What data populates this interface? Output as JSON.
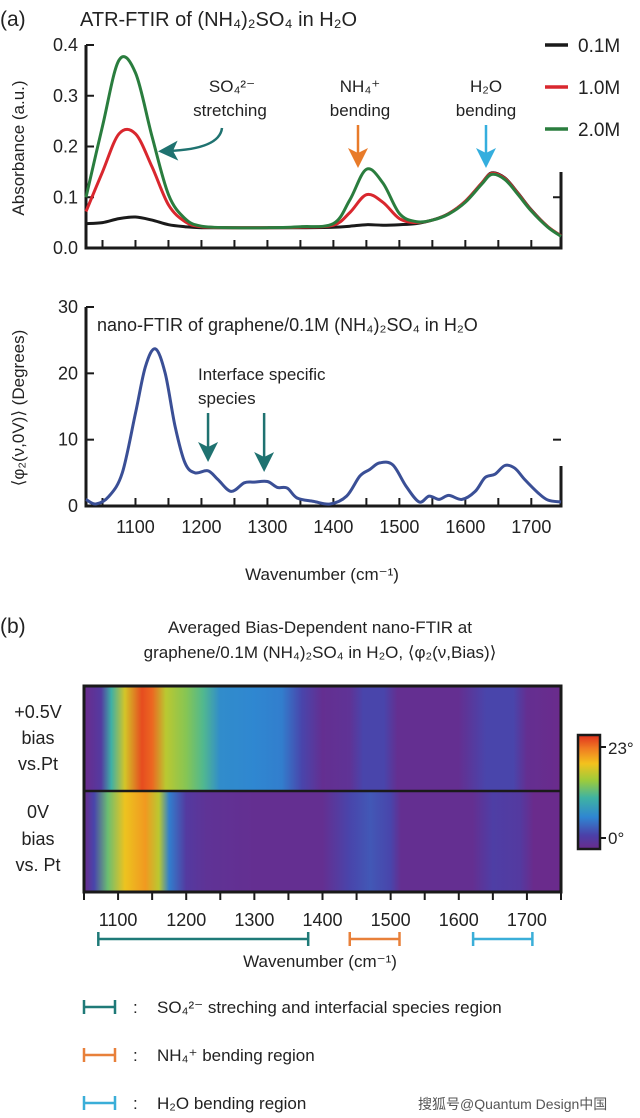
{
  "panel_a": {
    "label": "(a)",
    "atr": {
      "title": "ATR-FTIR of (NH₄)₂SO₄ in H₂O",
      "ylabel": "Absorbance (a.u.)",
      "annotations": {
        "so4_line1": "SO₄²⁻",
        "so4_line2": "stretching",
        "nh4_line1": "NH₄⁺",
        "nh4_line2": "bending",
        "h2o_line1": "H₂O",
        "h2o_line2": "bending"
      }
    },
    "nano": {
      "title": "nano-FTIR of graphene/0.1M (NH₄)₂SO₄ in H₂O",
      "ylabel": "⟨φ₂(ν,0V)⟩ (Degrees)",
      "xlabel": "Wavenumber (cm⁻¹)",
      "annotation_line1": "Interface specific",
      "annotation_line2": "species"
    }
  },
  "panel_b": {
    "label": "(b)",
    "title_line1": "Averaged Bias-Dependent nano-FTIR at",
    "title_line2": "graphene/0.1M (NH₄)₂SO₄ in H₂O, ⟨φ₂(ν,Bias)⟩",
    "row_labels": [
      [
        "+0.5V",
        "bias",
        "vs.Pt"
      ],
      [
        "0V",
        "bias",
        "vs. Pt"
      ]
    ],
    "colorbar": {
      "max_label": "23°",
      "min_label": "0°"
    },
    "xlabel": "Wavenumber (cm⁻¹)",
    "legend": [
      {
        "label": "SO₄²⁻ streching and interfacial species region",
        "color": "#1f7a78"
      },
      {
        "label": "NH₄⁺ bending region",
        "color": "#e8803a"
      },
      {
        "label": "H₂O  bending region",
        "color": "#3aaed8"
      }
    ],
    "separator": ":"
  },
  "watermark": "搜狐号@Quantum Design中国",
  "colors": {
    "teal_arrow": "#1f7270",
    "orange_arrow": "#e87b2a",
    "blue_arrow": "#34aede",
    "nano_line": "#3a4f96"
  },
  "chart_data": [
    {
      "type": "line",
      "title": "ATR-FTIR of (NH₄)₂SO₄ in H₂O",
      "xlabel": "",
      "ylabel": "Absorbance (a.u.)",
      "xlim": [
        1025,
        1745
      ],
      "ylim": [
        0,
        0.4
      ],
      "yticks": [
        0.0,
        0.1,
        0.2,
        0.3,
        0.4
      ],
      "yticklabels": [
        "0.0",
        "0.1",
        "0.2",
        "0.3",
        "0.4"
      ],
      "legend": "top-right",
      "x": [
        1025,
        1050,
        1075,
        1100,
        1125,
        1150,
        1175,
        1200,
        1250,
        1300,
        1350,
        1400,
        1425,
        1450,
        1475,
        1500,
        1525,
        1550,
        1575,
        1600,
        1625,
        1640,
        1660,
        1680,
        1700,
        1725,
        1745
      ],
      "series": [
        {
          "name": "0.1M",
          "color": "#1a1a1a",
          "values": [
            0.048,
            0.05,
            0.058,
            0.061,
            0.055,
            0.046,
            0.042,
            0.04,
            0.04,
            0.04,
            0.04,
            0.041,
            0.043,
            0.046,
            0.045,
            0.046,
            0.048,
            0.055,
            0.068,
            0.092,
            0.128,
            0.148,
            0.138,
            0.108,
            0.075,
            0.042,
            0.024
          ]
        },
        {
          "name": "1.0M",
          "color": "#d9272e",
          "values": [
            0.072,
            0.15,
            0.225,
            0.225,
            0.16,
            0.085,
            0.052,
            0.042,
            0.04,
            0.04,
            0.041,
            0.045,
            0.07,
            0.105,
            0.09,
            0.058,
            0.05,
            0.055,
            0.068,
            0.092,
            0.128,
            0.147,
            0.137,
            0.107,
            0.074,
            0.042,
            0.024
          ]
        },
        {
          "name": "2.0M",
          "color": "#2a7d3e",
          "values": [
            0.1,
            0.24,
            0.37,
            0.345,
            0.22,
            0.105,
            0.058,
            0.043,
            0.04,
            0.04,
            0.042,
            0.048,
            0.095,
            0.155,
            0.128,
            0.068,
            0.052,
            0.055,
            0.067,
            0.09,
            0.126,
            0.145,
            0.135,
            0.105,
            0.073,
            0.041,
            0.023
          ]
        }
      ]
    },
    {
      "type": "line",
      "title": "nano-FTIR of graphene/0.1M (NH₄)₂SO₄ in H₂O",
      "xlabel": "Wavenumber (cm⁻¹)",
      "ylabel": "⟨φ₂(ν,0V)⟩ (Degrees)",
      "xlim": [
        1025,
        1745
      ],
      "ylim": [
        0,
        30
      ],
      "yticks": [
        0,
        10,
        20,
        30
      ],
      "yticklabels": [
        "0",
        "10",
        "20",
        "30"
      ],
      "xticks": [
        1100,
        1200,
        1300,
        1400,
        1500,
        1600,
        1700
      ],
      "xticklabels": [
        "1100",
        "1200",
        "1300",
        "1400",
        "1500",
        "1600",
        "1700"
      ],
      "x": [
        1025,
        1040,
        1060,
        1080,
        1100,
        1115,
        1130,
        1145,
        1160,
        1175,
        1190,
        1210,
        1225,
        1245,
        1265,
        1280,
        1300,
        1315,
        1330,
        1345,
        1370,
        1395,
        1420,
        1440,
        1455,
        1470,
        1490,
        1510,
        1530,
        1545,
        1560,
        1575,
        1595,
        1615,
        1630,
        1645,
        1660,
        1675,
        1690,
        1710,
        1725,
        1745
      ],
      "series": [
        {
          "color": "#3a4f96",
          "values": [
            1.0,
            0.3,
            1.5,
            5.0,
            14.0,
            21.0,
            23.7,
            20.0,
            12.0,
            6.5,
            5.0,
            5.3,
            4.0,
            2.2,
            3.5,
            3.6,
            3.7,
            2.8,
            2.7,
            1.2,
            0.7,
            0.3,
            1.5,
            4.5,
            5.5,
            6.5,
            6.2,
            3.0,
            0.6,
            1.5,
            1.0,
            1.6,
            1.0,
            2.2,
            4.3,
            4.8,
            6.1,
            5.7,
            4.0,
            2.0,
            0.9,
            0.6
          ]
        }
      ],
      "annotation_arrows_at": [
        1210,
        1295
      ]
    },
    {
      "type": "heatmap",
      "title": "Averaged Bias-Dependent nano-FTIR at graphene/0.1M (NH₄)₂SO₄ in H₂O, ⟨φ₂(ν,Bias)⟩",
      "xlabel": "Wavenumber (cm⁻¹)",
      "xlim": [
        1050,
        1750
      ],
      "xticks": [
        1100,
        1200,
        1300,
        1400,
        1500,
        1600,
        1700
      ],
      "xticklabels": [
        "1100",
        "1200",
        "1300",
        "1400",
        "1500",
        "1600",
        "1700"
      ],
      "value_range": [
        0,
        23
      ],
      "colormap": [
        [
          0,
          "#6a2b8c"
        ],
        [
          0.12,
          "#4b40a8"
        ],
        [
          0.28,
          "#2f86d2"
        ],
        [
          0.45,
          "#3fb3a2"
        ],
        [
          0.6,
          "#9ccb3c"
        ],
        [
          0.75,
          "#f3c21d"
        ],
        [
          0.88,
          "#f07c22"
        ],
        [
          1,
          "#e0301e"
        ]
      ],
      "rows": [
        {
          "label": "+0.5V bias vs.Pt",
          "x": [
            1050,
            1075,
            1090,
            1110,
            1135,
            1150,
            1170,
            1200,
            1225,
            1250,
            1300,
            1340,
            1370,
            1400,
            1440,
            1460,
            1490,
            1510,
            1600,
            1640,
            1680,
            1700,
            1750
          ],
          "values": [
            0,
            2,
            10,
            16,
            22,
            21,
            15,
            13,
            11,
            7,
            6.5,
            6,
            3,
            0.5,
            1,
            3,
            3,
            0.5,
            0.5,
            3,
            3,
            0.5,
            0
          ]
        },
        {
          "label": "0V bias vs. Pt",
          "x": [
            1050,
            1065,
            1085,
            1110,
            1140,
            1160,
            1175,
            1200,
            1230,
            1300,
            1400,
            1440,
            1470,
            1500,
            1515,
            1620,
            1650,
            1690,
            1710,
            1750
          ],
          "values": [
            0,
            3,
            12,
            17,
            19,
            15,
            6,
            2,
            1,
            0.5,
            0.5,
            3,
            4,
            3,
            0.5,
            0.5,
            2.5,
            2,
            0,
            0
          ]
        }
      ],
      "regions": [
        {
          "range": [
            1071,
            1379
          ],
          "color": "#1f7a78"
        },
        {
          "range": [
            1440,
            1513
          ],
          "color": "#e8803a"
        },
        {
          "range": [
            1621,
            1708
          ],
          "color": "#3aaed8"
        }
      ]
    }
  ]
}
